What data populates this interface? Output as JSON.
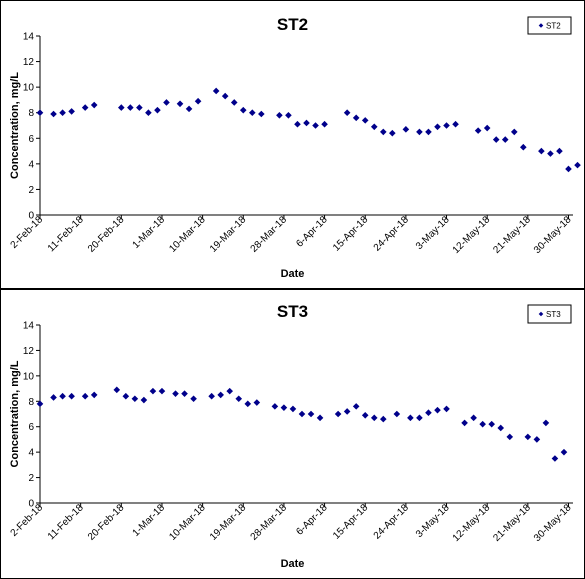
{
  "chart_data": [
    {
      "type": "scatter",
      "title": "ST2",
      "xlabel": "Date",
      "ylabel": "Concentration, mg/L",
      "ylim": [
        0,
        14
      ],
      "yticks": [
        "0",
        "2",
        "4",
        "6",
        "8",
        "10",
        "12",
        "14"
      ],
      "xlim": [
        "2018-02-02",
        "2018-05-31"
      ],
      "xticks": [
        "2-Feb-18",
        "11-Feb-18",
        "20-Feb-18",
        "1-Mar-18",
        "10-Mar-18",
        "19-Mar-18",
        "28-Mar-18",
        "6-Apr-18",
        "15-Apr-18",
        "24-Apr-18",
        "3-May-18",
        "12-May-18",
        "21-May-18",
        "30-May-18"
      ],
      "legend": "top-right",
      "grid": false,
      "marker_color": "#00008B",
      "series": [
        {
          "name": "ST2",
          "x": [
            "2018-02-02",
            "2018-02-05",
            "2018-02-07",
            "2018-02-09",
            "2018-02-12",
            "2018-02-14",
            "2018-02-20",
            "2018-02-22",
            "2018-02-24",
            "2018-02-26",
            "2018-02-28",
            "2018-03-02",
            "2018-03-05",
            "2018-03-07",
            "2018-03-09",
            "2018-03-13",
            "2018-03-15",
            "2018-03-17",
            "2018-03-19",
            "2018-03-21",
            "2018-03-23",
            "2018-03-27",
            "2018-03-29",
            "2018-03-31",
            "2018-04-02",
            "2018-04-04",
            "2018-04-06",
            "2018-04-11",
            "2018-04-13",
            "2018-04-15",
            "2018-04-17",
            "2018-04-19",
            "2018-04-21",
            "2018-04-24",
            "2018-04-27",
            "2018-04-29",
            "2018-05-01",
            "2018-05-03",
            "2018-05-05",
            "2018-05-10",
            "2018-05-12",
            "2018-05-14",
            "2018-05-16",
            "2018-05-18",
            "2018-05-20",
            "2018-05-24",
            "2018-05-26",
            "2018-05-28",
            "2018-05-30",
            "2018-06-01"
          ],
          "y": [
            8.0,
            7.9,
            8.0,
            8.1,
            8.4,
            8.6,
            8.4,
            8.4,
            8.4,
            8.0,
            8.2,
            8.8,
            8.7,
            8.3,
            8.9,
            9.7,
            9.3,
            8.8,
            8.2,
            8.0,
            7.9,
            7.8,
            7.8,
            7.1,
            7.2,
            7.0,
            7.1,
            8.0,
            7.6,
            7.4,
            6.9,
            6.5,
            6.4,
            6.7,
            6.5,
            6.5,
            6.9,
            7.0,
            7.1,
            6.6,
            6.8,
            5.9,
            5.9,
            6.5,
            5.3,
            5.0,
            4.8,
            5.0,
            3.6,
            3.9
          ]
        }
      ]
    },
    {
      "type": "scatter",
      "title": "ST3",
      "xlabel": "Date",
      "ylabel": "Concentration, mg/L",
      "ylim": [
        0,
        14
      ],
      "yticks": [
        "0",
        "2",
        "4",
        "6",
        "8",
        "10",
        "12",
        "14"
      ],
      "xlim": [
        "2018-02-02",
        "2018-05-31"
      ],
      "xticks": [
        "2-Feb-18",
        "11-Feb-18",
        "20-Feb-18",
        "1-Mar-18",
        "10-Mar-18",
        "19-Mar-18",
        "28-Mar-18",
        "6-Apr-18",
        "15-Apr-18",
        "24-Apr-18",
        "3-May-18",
        "12-May-18",
        "21-May-18",
        "30-May-18"
      ],
      "legend": "top-right",
      "grid": false,
      "marker_color": "#00008B",
      "series": [
        {
          "name": "ST3",
          "x": [
            "2018-02-02",
            "2018-02-05",
            "2018-02-07",
            "2018-02-09",
            "2018-02-12",
            "2018-02-14",
            "2018-02-19",
            "2018-02-21",
            "2018-02-23",
            "2018-02-25",
            "2018-02-27",
            "2018-03-01",
            "2018-03-04",
            "2018-03-06",
            "2018-03-08",
            "2018-03-12",
            "2018-03-14",
            "2018-03-16",
            "2018-03-18",
            "2018-03-20",
            "2018-03-22",
            "2018-03-26",
            "2018-03-28",
            "2018-03-30",
            "2018-04-01",
            "2018-04-03",
            "2018-04-05",
            "2018-04-09",
            "2018-04-11",
            "2018-04-13",
            "2018-04-15",
            "2018-04-17",
            "2018-04-19",
            "2018-04-22",
            "2018-04-25",
            "2018-04-27",
            "2018-04-29",
            "2018-05-01",
            "2018-05-03",
            "2018-05-07",
            "2018-05-09",
            "2018-05-11",
            "2018-05-13",
            "2018-05-15",
            "2018-05-17",
            "2018-05-21",
            "2018-05-23",
            "2018-05-25",
            "2018-05-27",
            "2018-05-29"
          ],
          "y": [
            7.8,
            8.3,
            8.4,
            8.4,
            8.4,
            8.5,
            8.9,
            8.4,
            8.2,
            8.1,
            8.8,
            8.8,
            8.6,
            8.6,
            8.2,
            8.4,
            8.5,
            8.8,
            8.2,
            7.8,
            7.9,
            7.6,
            7.5,
            7.4,
            7.0,
            7.0,
            6.7,
            7.0,
            7.2,
            7.6,
            6.9,
            6.7,
            6.6,
            7.0,
            6.7,
            6.7,
            7.1,
            7.3,
            7.4,
            6.3,
            6.7,
            6.2,
            6.2,
            5.9,
            5.2,
            5.2,
            5.0,
            6.3,
            3.5,
            4.0
          ]
        }
      ]
    }
  ]
}
